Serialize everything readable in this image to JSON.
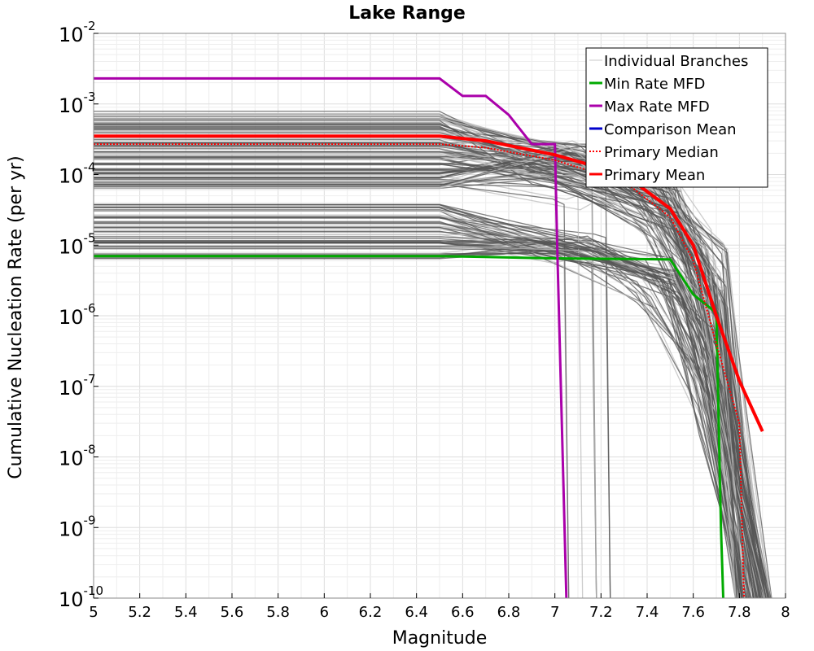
{
  "chart_data": {
    "type": "line",
    "title": "Lake Range",
    "xlabel": "Magnitude",
    "ylabel": "Cumulative Nucleation Rate (per yr)",
    "xlim": [
      5,
      8
    ],
    "ylim_log10": [
      -10,
      -2
    ],
    "x_scale": "linear",
    "y_scale": "log",
    "x_ticks": [
      "5",
      "5.2",
      "5.4",
      "5.6",
      "5.8",
      "6",
      "6.2",
      "6.4",
      "6.6",
      "6.8",
      "7",
      "7.2",
      "7.4",
      "7.6",
      "7.8",
      "8"
    ],
    "y_ticks": [
      {
        "base": "10",
        "exp": "-2"
      },
      {
        "base": "10",
        "exp": "-3"
      },
      {
        "base": "10",
        "exp": "-4"
      },
      {
        "base": "10",
        "exp": "-5"
      },
      {
        "base": "10",
        "exp": "-6"
      },
      {
        "base": "10",
        "exp": "-7"
      },
      {
        "base": "10",
        "exp": "-8"
      },
      {
        "base": "10",
        "exp": "-9"
      },
      {
        "base": "10",
        "exp": "-10"
      }
    ],
    "grid": true,
    "legend_position": "top-right",
    "legend": [
      {
        "label": "Individual Branches",
        "color": "#c8c8c8",
        "style": "solid"
      },
      {
        "label": "Min Rate MFD",
        "color": "#00aa00",
        "style": "solid"
      },
      {
        "label": "Max Rate MFD",
        "color": "#aa00aa",
        "style": "solid"
      },
      {
        "label": "Comparison Mean",
        "color": "#0000cc",
        "style": "solid"
      },
      {
        "label": " Primary Median",
        "color": "#ff0000",
        "style": "dotted"
      },
      {
        "label": "Primary Mean",
        "color": "#ff0000",
        "style": "solid"
      }
    ],
    "series": [
      {
        "name": "Min Rate MFD",
        "color": "#00aa00",
        "style": "solid",
        "x": [
          5.0,
          6.5,
          6.7,
          7.0,
          7.5,
          7.6,
          7.7,
          7.72,
          7.73
        ],
        "y": [
          7e-06,
          7e-06,
          6.8e-06,
          6.5e-06,
          6.3e-06,
          2e-06,
          1.1e-06,
          1e-09,
          1e-10
        ]
      },
      {
        "name": "Max Rate MFD",
        "color": "#aa00aa",
        "style": "solid",
        "x": [
          5.0,
          6.5,
          6.6,
          6.7,
          6.8,
          6.9,
          7.0,
          7.01,
          7.05
        ],
        "y": [
          0.0023,
          0.0023,
          0.0013,
          0.0013,
          0.0007,
          0.00027,
          0.00027,
          1e-05,
          1e-10
        ]
      },
      {
        "name": "Primary Median",
        "color": "#ff0000",
        "style": "dotted",
        "x": [
          5.0,
          6.5,
          6.7,
          7.0,
          7.3,
          7.5,
          7.6,
          7.7,
          7.8,
          7.82
        ],
        "y": [
          0.00027,
          0.00027,
          0.00024,
          0.00016,
          8e-05,
          2.5e-05,
          6e-06,
          4e-07,
          3e-08,
          1e-10
        ]
      },
      {
        "name": "Primary Mean",
        "color": "#ff0000",
        "style": "solid",
        "x": [
          5.0,
          6.5,
          6.7,
          7.0,
          7.3,
          7.5,
          7.6,
          7.7,
          7.8,
          7.9
        ],
        "y": [
          0.00035,
          0.00035,
          0.0003,
          0.00019,
          0.0001,
          3.3e-05,
          1e-05,
          1e-06,
          1.2e-07,
          2.3e-08
        ]
      }
    ]
  }
}
